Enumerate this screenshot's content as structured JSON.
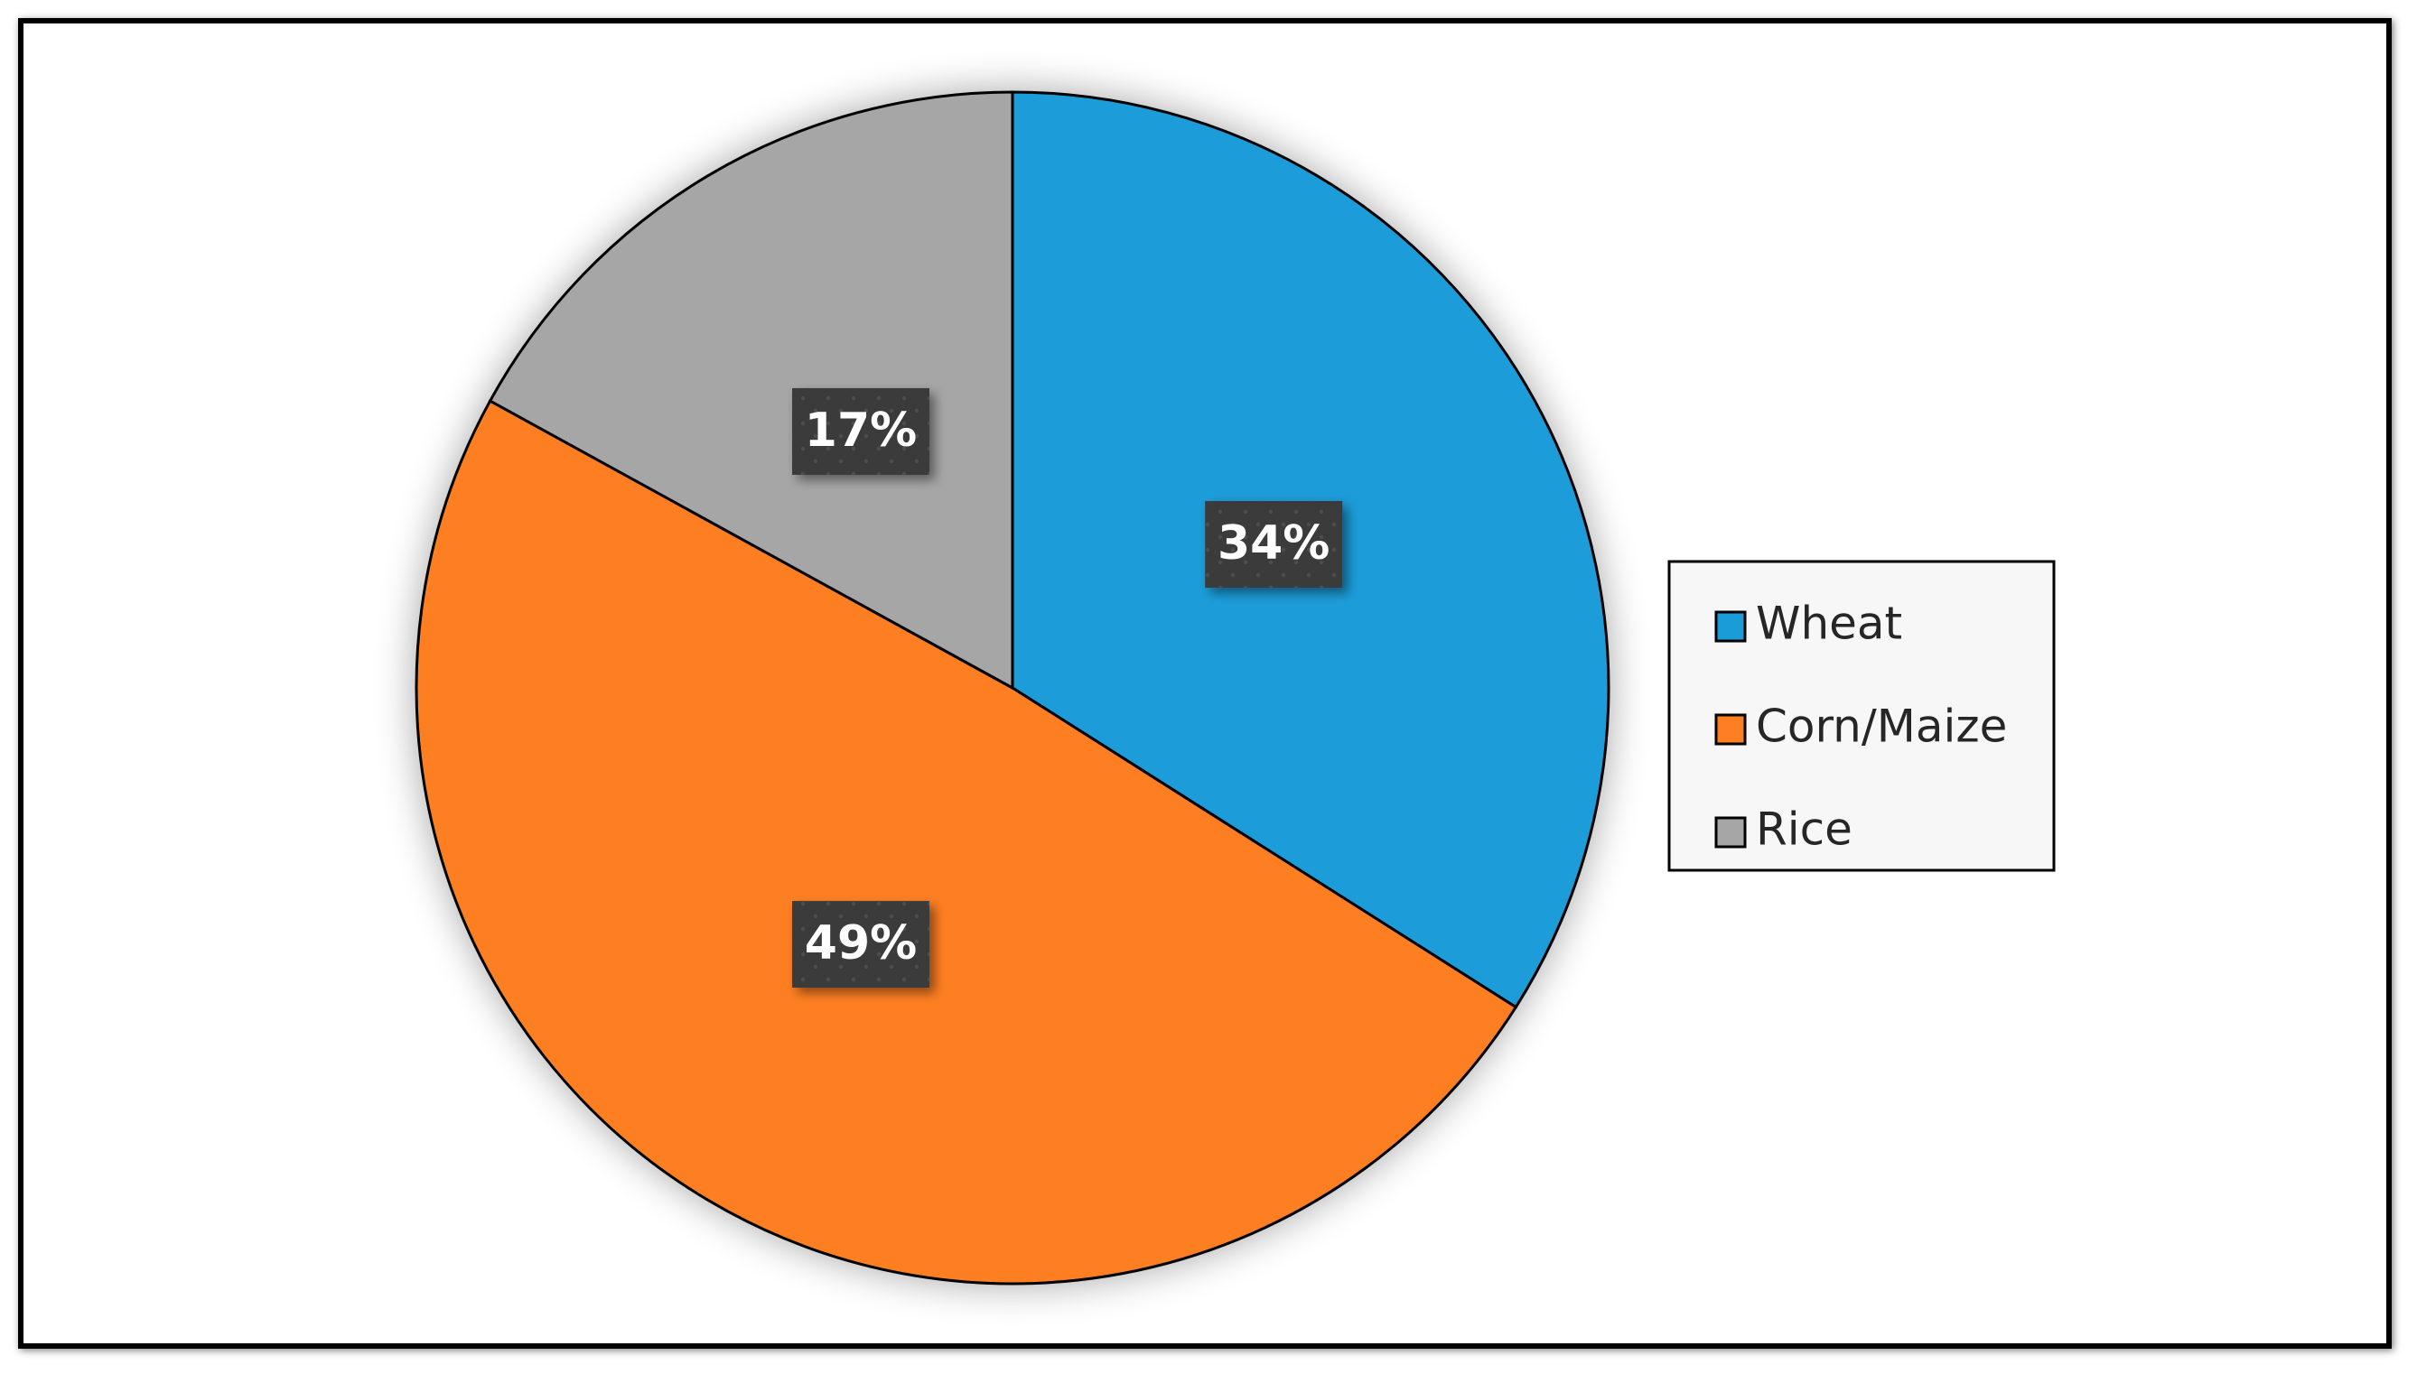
{
  "chart_data": {
    "type": "pie",
    "categories": [
      "Wheat",
      "Corn/Maize",
      "Rice"
    ],
    "values": [
      34,
      49,
      17
    ],
    "labels": [
      "34%",
      "49%",
      "17%"
    ],
    "colors": [
      "#1a9cd8",
      "#fd7f22",
      "#a6a6a6"
    ],
    "start_angle_deg": 0,
    "direction": "clockwise",
    "legend_position": "right",
    "data_label_style": "dark-box"
  }
}
